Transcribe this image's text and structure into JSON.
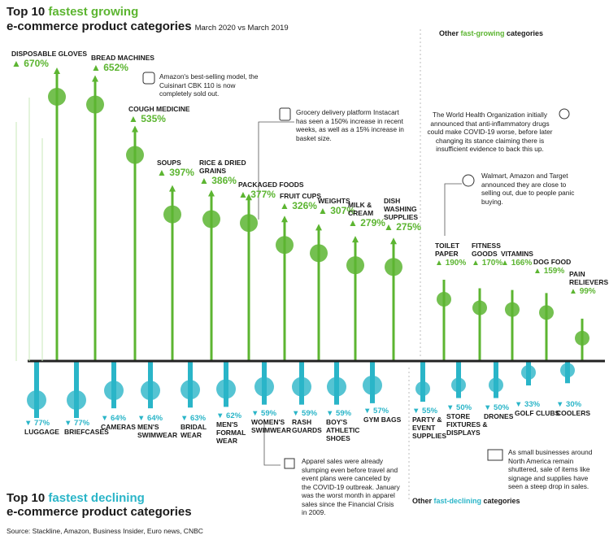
{
  "header": {
    "title_prefix": "Top 10 ",
    "title_highlight": "fastest growing",
    "title_line2": "e-commerce product categories",
    "subtitle": "March 2020 vs March 2019",
    "other_growing_prefix": "Other ",
    "other_growing_highlight": "fast-growing",
    "other_growing_suffix": " categories"
  },
  "footer": {
    "title_prefix": "Top 10 ",
    "title_highlight": "fastest declining",
    "title_line2": "e-commerce product categories",
    "other_declining_prefix": "Other ",
    "other_declining_highlight": "fast-declining",
    "other_declining_suffix": " categories",
    "source": "Source: Stackline, Amazon, Business Insider, Euro news, CNBC"
  },
  "notes": {
    "bread": "Amazon's best-selling model, the Cuisinart CBK 110 is now completely sold out.",
    "grocery": "Grocery delivery platform Instacart has seen a 150% increase in recent weeks, as well as a 15% increase in basket size.",
    "who": "The World Health Organization initially announced that anti-inflammatory drugs could make COVID-19 worse, before later changing its stance claiming there is insufficient evidence to back this up.",
    "tp": "Walmart, Amazon and Target announced they are close to selling out, due to people panic buying.",
    "apparel": "Apparel sales were already slumping even before travel and event plans were canceled by the COVID-19 outbreak. January was the worst month in apparel sales since the Financial Crisis in 2009.",
    "signage": "As small businesses around North America remain shuttered, sale of items like signage and supplies have seen a steep drop in sales."
  },
  "chart_data": {
    "type": "bar",
    "units": "%",
    "growing": {
      "categories": [
        "DISPOSABLE GLOVES",
        "BREAD MACHINES",
        "COUGH MEDICINE",
        "SOUPS",
        "RICE & DRIED GRAINS",
        "PACKAGED FOODS",
        "FRUIT CUPS",
        "WEIGHTS",
        "MILK & CREAM",
        "DISH WASHING SUPPLIES"
      ],
      "labels": [
        "670%",
        "652%",
        "535%",
        "397%",
        "386%",
        "377%",
        "326%",
        "307%",
        "279%",
        "275%"
      ],
      "values": [
        670,
        652,
        535,
        397,
        386,
        377,
        326,
        307,
        279,
        275
      ]
    },
    "other_growing": {
      "categories": [
        "TOILET PAPER",
        "FITNESS GOODS",
        "VITAMINS",
        "DOG FOOD",
        "PAIN RELIEVERS"
      ],
      "labels": [
        "190%",
        "170%",
        "166%",
        "159%",
        "99%"
      ],
      "values": [
        190,
        170,
        166,
        159,
        99
      ]
    },
    "declining": {
      "categories": [
        "LUGGAGE",
        "BRIEFCASES",
        "CAMERAS",
        "MEN'S SWIMWEAR",
        "BRIDAL WEAR",
        "MEN'S FORMAL WEAR",
        "WOMEN'S SWIMWEAR",
        "RASH GUARDS",
        "BOY'S ATHLETIC SHOES",
        "GYM BAGS"
      ],
      "labels": [
        "77%",
        "77%",
        "64%",
        "64%",
        "63%",
        "62%",
        "59%",
        "59%",
        "59%",
        "57%"
      ],
      "values": [
        77,
        77,
        64,
        64,
        63,
        62,
        59,
        59,
        59,
        57
      ]
    },
    "other_declining": {
      "categories": [
        "PARTY & EVENT SUPPLIES",
        "STORE FIXTURES & DISPLAYS",
        "DRONES",
        "GOLF CLUBS",
        "COOLERS"
      ],
      "labels": [
        "55%",
        "50%",
        "50%",
        "33%",
        "30%"
      ],
      "values": [
        55,
        50,
        50,
        33,
        30
      ]
    },
    "colors": {
      "growing": "#5cb531",
      "declining": "#2ab5c8",
      "baseline": "#222222"
    }
  }
}
